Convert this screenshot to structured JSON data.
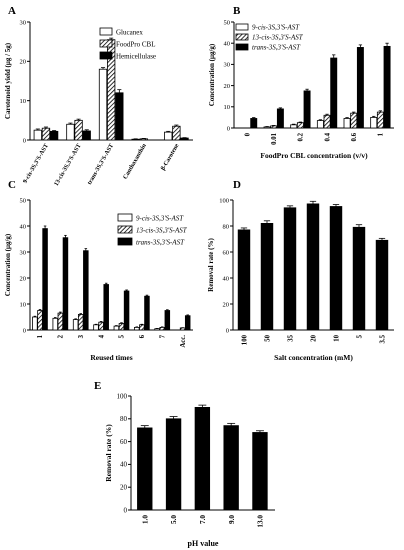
{
  "chart_data": [
    {
      "panel": "A",
      "type": "bar",
      "ylabel": "Carotenoid yield (μg / 5g)",
      "ylim": [
        0,
        30
      ],
      "yticks": [
        0,
        10,
        20,
        30
      ],
      "categories": [
        "9-cis-3S,3'S-AST",
        "13-cis-3S,3'S-AST",
        "trans-3S,3'S-AST",
        "Canthaxanthin",
        "β-Carotene"
      ],
      "series": [
        {
          "name": "Glucanex",
          "pattern": "white",
          "values": [
            2.5,
            4.0,
            18.0,
            0.2,
            2.0
          ],
          "errors": [
            0.3,
            0.3,
            0.4,
            0.1,
            0.2
          ]
        },
        {
          "name": "FoodPro CBL",
          "pattern": "hatch",
          "values": [
            3.0,
            5.0,
            25.5,
            0.3,
            3.5
          ],
          "errors": [
            0.3,
            0.3,
            0.4,
            0.1,
            0.3
          ]
        },
        {
          "name": "Hemicellulase",
          "pattern": "black",
          "values": [
            2.2,
            2.3,
            12.0,
            0,
            0.5
          ],
          "errors": [
            0.2,
            0.3,
            0.8,
            0,
            0.1
          ]
        }
      ]
    },
    {
      "panel": "B",
      "type": "bar",
      "xlabel": "FoodPro CBL concentration (v/v)",
      "ylabel": "Concentration (μg/g)",
      "ylim": [
        0,
        50
      ],
      "yticks": [
        0,
        10,
        20,
        30,
        40,
        50
      ],
      "categories": [
        "0",
        "0.01",
        "0.2",
        "0.4",
        "0.6",
        "1"
      ],
      "series": [
        {
          "name": "9-cis-3S,3'S-AST",
          "pattern": "white",
          "values": [
            0,
            0.5,
            1.5,
            3.5,
            4.5,
            5.0
          ],
          "errors": [
            0,
            0.2,
            0.3,
            0.4,
            0.4,
            0.5
          ]
        },
        {
          "name": "13-cis-3S,3'S-AST",
          "pattern": "hatch",
          "values": [
            0,
            1.0,
            2.5,
            6.0,
            7.0,
            7.5
          ],
          "errors": [
            0,
            0.2,
            0.3,
            0.5,
            0.5,
            0.6
          ]
        },
        {
          "name": "trans-3S,3'S-AST",
          "pattern": "black",
          "values": [
            4.5,
            9.0,
            17.5,
            33.0,
            38.0,
            38.5
          ],
          "errors": [
            0.4,
            0.5,
            0.8,
            1.5,
            1.2,
            1.5
          ]
        }
      ]
    },
    {
      "panel": "C",
      "type": "bar",
      "xlabel": "Reused times",
      "ylabel": "Concentration (μg/g)",
      "ylim": [
        0,
        50
      ],
      "yticks": [
        0,
        10,
        20,
        30,
        40,
        50
      ],
      "categories": [
        "1",
        "2",
        "3",
        "4",
        "5",
        "6",
        "7",
        "Acc."
      ],
      "series": [
        {
          "name": "9-cis-3S,3'S-AST",
          "pattern": "white",
          "values": [
            5.0,
            4.5,
            4.0,
            2.0,
            1.5,
            1.0,
            0.5,
            0
          ],
          "errors": [
            0.3,
            0.3,
            0.3,
            0.2,
            0.2,
            0.2,
            0.1,
            0
          ]
        },
        {
          "name": "13-cis-3S,3'S-AST",
          "pattern": "hatch",
          "values": [
            7.5,
            6.5,
            6.0,
            3.0,
            2.5,
            2.0,
            1.0,
            0.8
          ],
          "errors": [
            0.4,
            0.4,
            0.3,
            0.3,
            0.3,
            0.2,
            0.2,
            0.1
          ]
        },
        {
          "name": "trans-3S,3'S-AST",
          "pattern": "black",
          "values": [
            39.0,
            35.5,
            30.5,
            17.5,
            15.0,
            13.0,
            7.5,
            5.5
          ],
          "errors": [
            1.0,
            0.9,
            0.8,
            0.5,
            0.4,
            0.4,
            0.3,
            0.3
          ]
        }
      ]
    },
    {
      "panel": "D",
      "type": "bar",
      "xlabel": "Salt concentration (mM)",
      "ylabel": "Removal rate (%)",
      "ylim": [
        0,
        100
      ],
      "yticks": [
        0,
        20,
        40,
        60,
        80,
        100
      ],
      "categories": [
        "100",
        "50",
        "35",
        "20",
        "10",
        "5",
        "3.5"
      ],
      "values": [
        77,
        82,
        94,
        97,
        95,
        79,
        69
      ],
      "errors": [
        1.5,
        2.0,
        1.5,
        2.0,
        1.5,
        2.0,
        1.5
      ]
    },
    {
      "panel": "E",
      "type": "bar",
      "xlabel": "pH value",
      "ylabel": "Removal rate (%)",
      "ylim": [
        0,
        100
      ],
      "yticks": [
        0,
        20,
        40,
        60,
        80,
        100
      ],
      "categories": [
        "1.0",
        "5.0",
        "7.0",
        "9.0",
        "13.0"
      ],
      "values": [
        72,
        80,
        90,
        74,
        68
      ],
      "errors": [
        2.0,
        2.0,
        2.0,
        2.0,
        1.5
      ]
    }
  ]
}
